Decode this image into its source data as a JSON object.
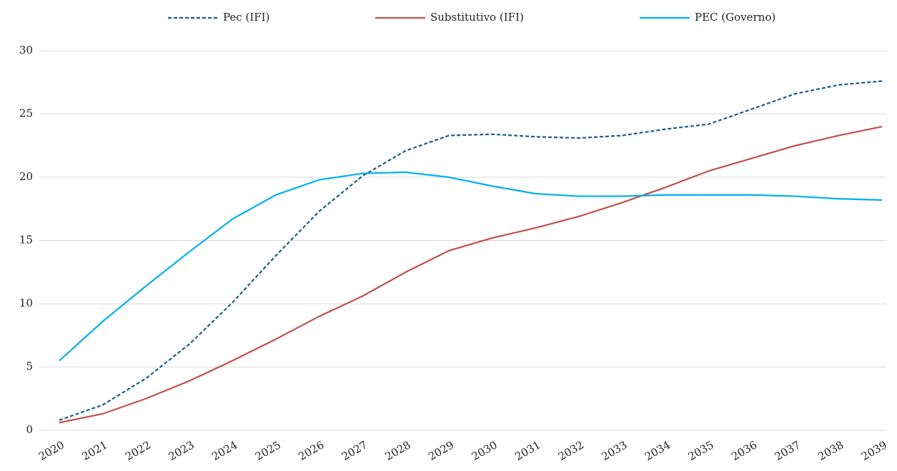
{
  "chart_data": {
    "type": "line",
    "categories": [
      "2020",
      "2021",
      "2022",
      "2023",
      "2024",
      "2025",
      "2026",
      "2027",
      "2028",
      "2029",
      "2030",
      "2031",
      "2032",
      "2033",
      "2034",
      "2035",
      "2036",
      "2037",
      "2038",
      "2039"
    ],
    "series": [
      {
        "name": "Pec (IFI)",
        "color": "#1b5e82",
        "dashed": true,
        "values": [
          0.8,
          2.0,
          4.1,
          6.8,
          10.1,
          13.8,
          17.3,
          20.1,
          22.1,
          23.3,
          23.4,
          23.2,
          23.1,
          23.3,
          23.8,
          24.2,
          25.4,
          26.6,
          27.3,
          27.6
        ]
      },
      {
        "name": "Substitutivo (IFI)",
        "color": "#c0504d",
        "dashed": false,
        "values": [
          0.6,
          1.3,
          2.5,
          3.9,
          5.5,
          7.2,
          9.0,
          10.6,
          12.5,
          14.2,
          15.2,
          16.0,
          16.9,
          18.0,
          19.2,
          20.5,
          21.5,
          22.5,
          23.3,
          24.0
        ]
      },
      {
        "name": "PEC (Governo)",
        "color": "#00b0f0",
        "dashed": false,
        "values": [
          5.5,
          8.6,
          11.4,
          14.1,
          16.7,
          18.6,
          19.8,
          20.3,
          20.4,
          20.0,
          19.3,
          18.7,
          18.5,
          18.5,
          18.6,
          18.6,
          18.6,
          18.5,
          18.3,
          18.2
        ]
      }
    ],
    "ylim": [
      0,
      30
    ],
    "yticks": [
      0,
      5,
      10,
      15,
      20,
      25,
      30
    ],
    "grid": true,
    "legend": "top"
  }
}
